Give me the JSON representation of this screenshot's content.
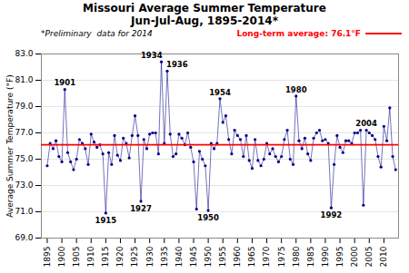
{
  "chart_data": {
    "type": "line",
    "title": "Missouri Average Summer Temperature",
    "subtitle": "Jun-Jul-Aug, 1895-2014*",
    "note": "*Preliminary  data for 2014",
    "y_label": "Average Summer Temperature (°F)",
    "x": [
      1895,
      1896,
      1897,
      1898,
      1899,
      1900,
      1901,
      1902,
      1903,
      1904,
      1905,
      1906,
      1907,
      1908,
      1909,
      1910,
      1911,
      1912,
      1913,
      1914,
      1915,
      1916,
      1917,
      1918,
      1919,
      1920,
      1921,
      1922,
      1923,
      1924,
      1925,
      1926,
      1927,
      1928,
      1929,
      1930,
      1931,
      1932,
      1933,
      1934,
      1935,
      1936,
      1937,
      1938,
      1939,
      1940,
      1941,
      1942,
      1943,
      1944,
      1945,
      1946,
      1947,
      1948,
      1949,
      1950,
      1951,
      1952,
      1953,
      1954,
      1955,
      1956,
      1957,
      1958,
      1959,
      1960,
      1961,
      1962,
      1963,
      1964,
      1965,
      1966,
      1967,
      1968,
      1969,
      1970,
      1971,
      1972,
      1973,
      1974,
      1975,
      1976,
      1977,
      1978,
      1979,
      1980,
      1981,
      1982,
      1983,
      1984,
      1985,
      1986,
      1987,
      1988,
      1989,
      1990,
      1991,
      1992,
      1993,
      1994,
      1995,
      1996,
      1997,
      1998,
      1999,
      2000,
      2001,
      2002,
      2003,
      2004,
      2005,
      2006,
      2007,
      2008,
      2009,
      2010,
      2011,
      2012,
      2013,
      2014
    ],
    "values": [
      74.5,
      76.2,
      75.8,
      76.4,
      75.2,
      74.8,
      80.3,
      75.5,
      74.8,
      74.2,
      75.0,
      76.5,
      76.2,
      75.8,
      74.6,
      76.9,
      76.3,
      75.9,
      76.1,
      75.4,
      70.9,
      75.5,
      74.6,
      76.8,
      75.3,
      74.9,
      76.6,
      76.2,
      75.1,
      76.8,
      78.3,
      76.8,
      71.8,
      76.5,
      75.8,
      76.9,
      77.0,
      77.0,
      75.4,
      82.4,
      76.2,
      81.7,
      76.9,
      75.2,
      75.4,
      76.9,
      76.6,
      76.1,
      77.0,
      75.9,
      74.8,
      71.2,
      75.6,
      75.0,
      74.5,
      71.1,
      76.2,
      75.8,
      76.2,
      79.6,
      77.8,
      78.3,
      76.5,
      75.4,
      77.2,
      76.8,
      76.5,
      75.2,
      76.8,
      74.9,
      74.3,
      76.5,
      74.9,
      74.5,
      75.0,
      76.2,
      75.4,
      75.8,
      75.2,
      74.8,
      75.2,
      76.5,
      77.2,
      75.0,
      74.6,
      79.8,
      76.4,
      75.8,
      76.6,
      75.4,
      74.9,
      76.6,
      77.0,
      77.2,
      76.4,
      76.5,
      76.2,
      71.3,
      74.6,
      76.8,
      75.9,
      75.5,
      76.4,
      76.4,
      76.2,
      77.0,
      77.0,
      77.2,
      71.5,
      77.2,
      77.0,
      76.8,
      76.5,
      75.2,
      74.4,
      77.5,
      76.4,
      78.9,
      75.2,
      74.2
    ],
    "color": "#00008B",
    "marker": "circle",
    "reference_line": {
      "value": 76.1,
      "label": "Long-term average: 76.1°F",
      "color": "red"
    },
    "annotations": [
      {
        "x": 1901,
        "text": "1901"
      },
      {
        "x": 1915,
        "text": "1915"
      },
      {
        "x": 1927,
        "text": "1927"
      },
      {
        "x": 1934,
        "text": "1934"
      },
      {
        "x": 1936,
        "text": "1936"
      },
      {
        "x": 1950,
        "text": "1950"
      },
      {
        "x": 1954,
        "text": "1954"
      },
      {
        "x": 1980,
        "text": "1980"
      },
      {
        "x": 1992,
        "text": "1992"
      },
      {
        "x": 2004,
        "text": "2004"
      }
    ],
    "xlim": [
      1893,
      2015
    ],
    "xticks": [
      1895,
      1900,
      1905,
      1910,
      1915,
      1920,
      1925,
      1930,
      1935,
      1940,
      1945,
      1950,
      1955,
      1960,
      1965,
      1970,
      1975,
      1980,
      1985,
      1990,
      1995,
      2000,
      2005,
      2010
    ],
    "ylim": [
      69.0,
      83.0
    ],
    "yticks": [
      {
        "value": 69.0,
        "label": "69.0"
      },
      {
        "value": 71.0,
        "label": "71.0"
      },
      {
        "value": 73.0,
        "label": "73.0"
      },
      {
        "value": 75.0,
        "label": "75.0"
      },
      {
        "value": 77.0,
        "label": "77.0"
      },
      {
        "value": 79.0,
        "label": "79.0"
      },
      {
        "value": 81.0,
        "label": "81.0"
      },
      {
        "value": 83.0,
        "label": "83.0"
      }
    ],
    "grid": true
  }
}
